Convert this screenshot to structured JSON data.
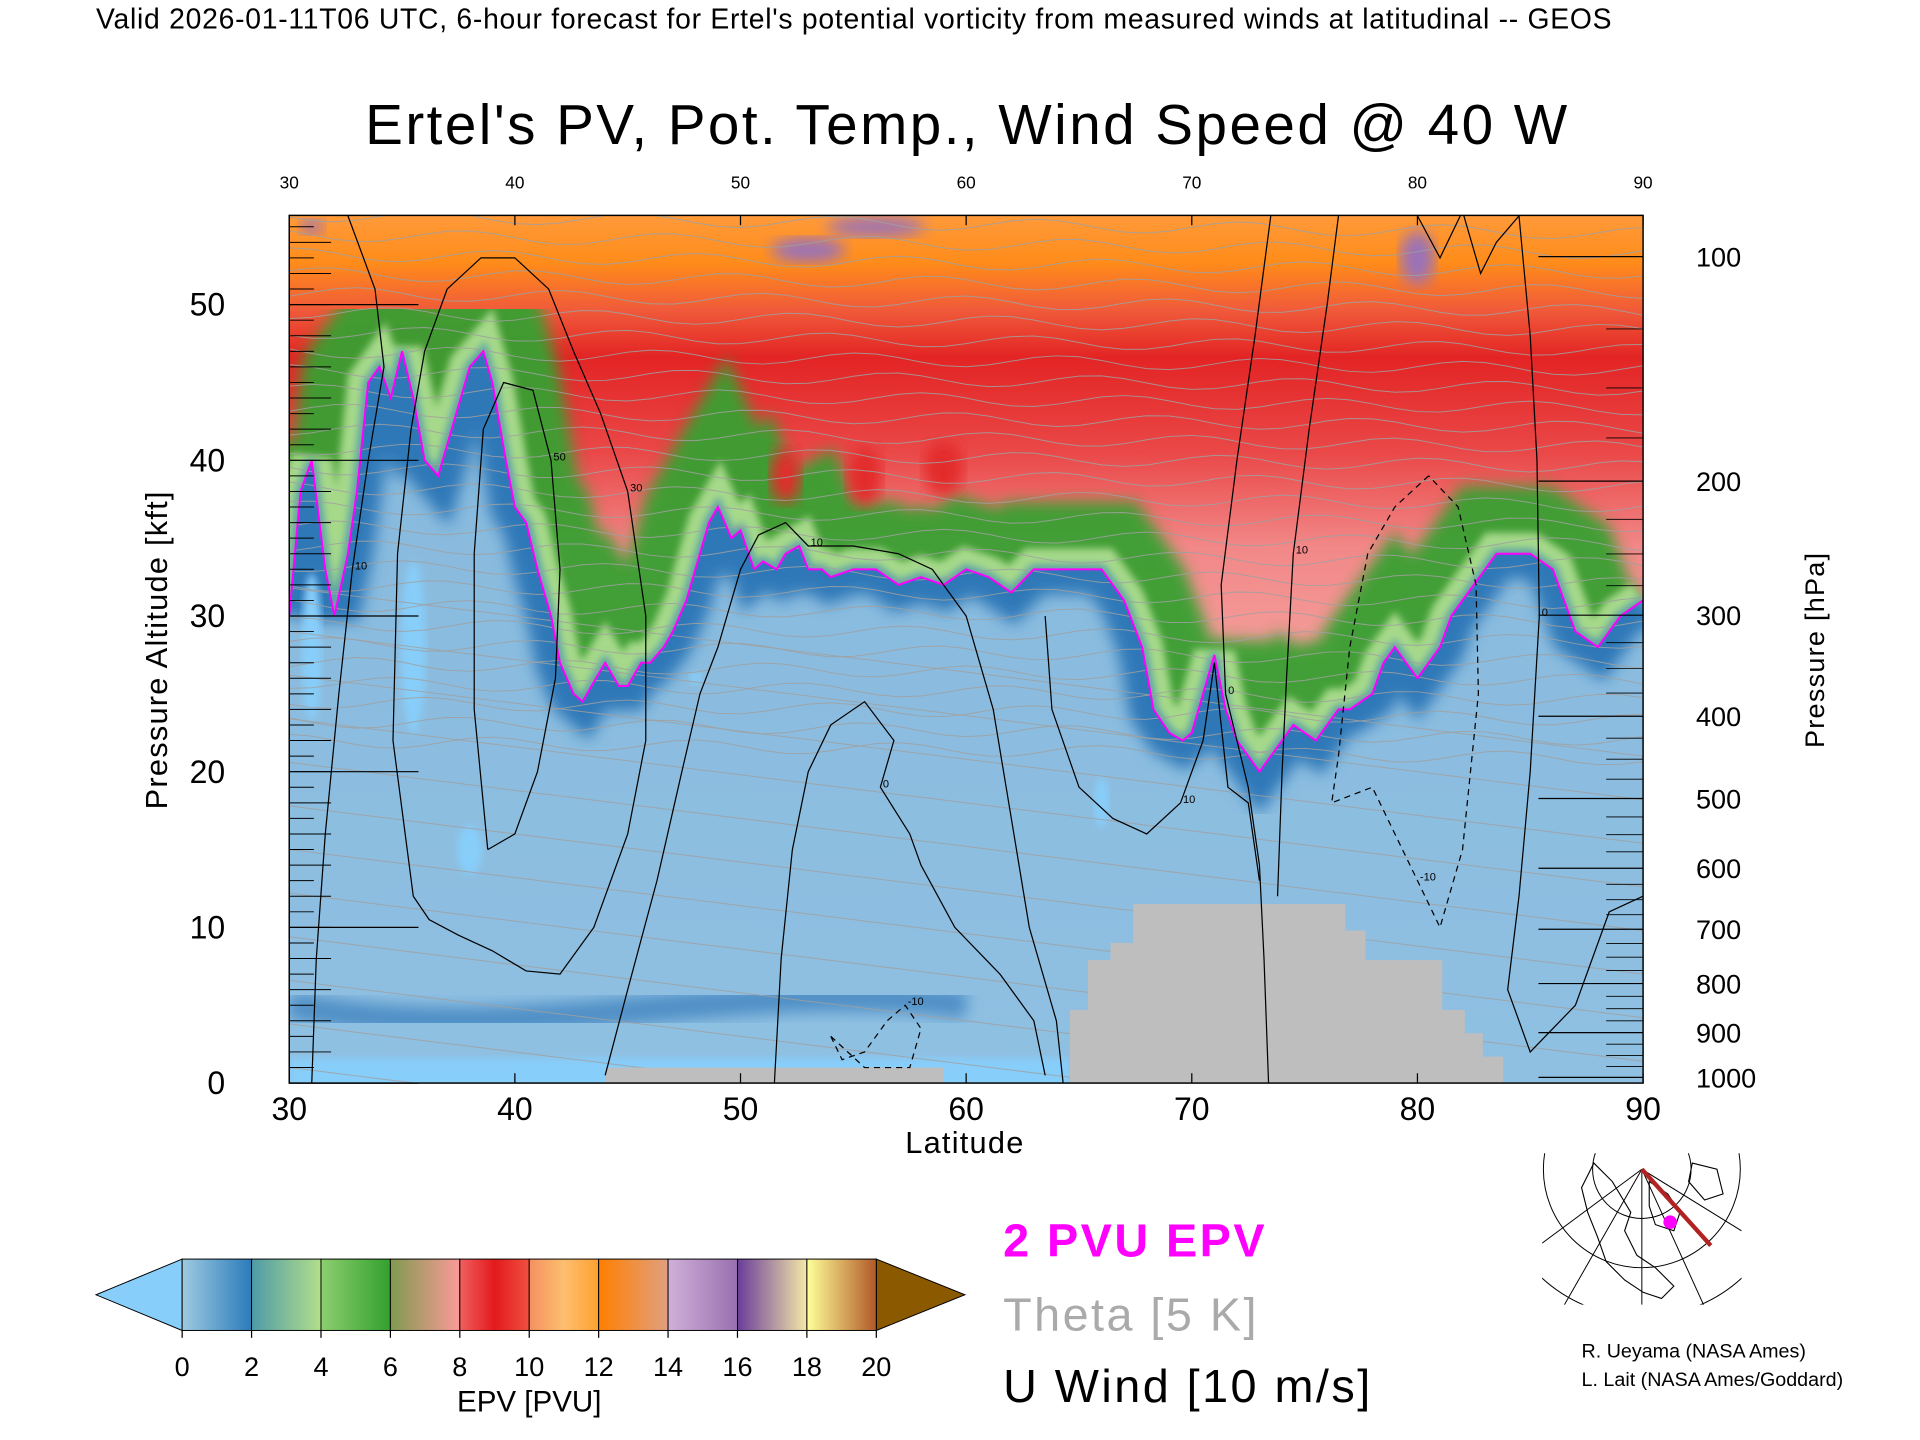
{
  "header": {
    "valid_line": "Valid 2026-01-11T06 UTC, 6-hour forecast for Ertel's potential vorticity from measured winds at latitudinal -- GEOS"
  },
  "chart_data": {
    "type": "heatmap",
    "title": "Ertel's PV, Pot. Temp., Wind Speed @ 40 W",
    "xlabel": "Latitude",
    "ylabel": "Pressure Altitude [kft]",
    "y2label": "Pressure [hPa]",
    "xlim": [
      30,
      90
    ],
    "ylim": [
      0,
      55.7
    ],
    "x_ticks": [
      "30",
      "40",
      "50",
      "60",
      "70",
      "80",
      "90"
    ],
    "top_x_ticks": [
      "30",
      "40",
      "50",
      "60",
      "70",
      "80",
      "90"
    ],
    "y_ticks": [
      "0",
      "10",
      "20",
      "30",
      "40",
      "50"
    ],
    "y2_ticks": [
      "100",
      "200",
      "300",
      "400",
      "500",
      "600",
      "700",
      "800",
      "900",
      "1000"
    ],
    "colorbar": {
      "label": "EPV [PVU]",
      "range": [
        0,
        20
      ],
      "tick_labels": [
        "0",
        "2",
        "4",
        "6",
        "8",
        "10",
        "12",
        "14",
        "16",
        "18",
        "20"
      ],
      "under_color": "#87cefa",
      "over_color": "#8b5a00",
      "segments": [
        [
          "#9ecae1",
          "#2b7bba"
        ],
        [
          "#4f9aa8",
          "#b2df8a"
        ],
        [
          "#8ccf70",
          "#33a02c"
        ],
        [
          "#809a50",
          "#fb9a99"
        ],
        [
          "#f06060",
          "#e31a1c",
          "#f05040"
        ],
        [
          "#f49060",
          "#fdbf6f",
          "#ffa030"
        ],
        [
          "#ff7f00",
          "#e0a080"
        ],
        [
          "#d0b0d8",
          "#9970b0"
        ],
        [
          "#6a3d9a",
          "#f4e8a8"
        ],
        [
          "#ffff99",
          "#b15928"
        ]
      ]
    },
    "legend": {
      "pv_contour": "2 PVU EPV",
      "theta": "Theta [5 K]",
      "wind": "U Wind [10 m/s]",
      "pv_color": "#ff00ff",
      "theta_color": "#aaaaaa",
      "wind_color": "#000000"
    },
    "tropopause_2pvu": [
      [
        30,
        30
      ],
      [
        30.5,
        38
      ],
      [
        31,
        40
      ],
      [
        31.6,
        33
      ],
      [
        32,
        30
      ],
      [
        32.6,
        34
      ],
      [
        33,
        38
      ],
      [
        33.5,
        45
      ],
      [
        34,
        46
      ],
      [
        34.5,
        44
      ],
      [
        35,
        47
      ],
      [
        35.5,
        44
      ],
      [
        36,
        40
      ],
      [
        36.6,
        39
      ],
      [
        37.2,
        42
      ],
      [
        38,
        46
      ],
      [
        38.6,
        47
      ],
      [
        39,
        45
      ],
      [
        39.6,
        40
      ],
      [
        40,
        37
      ],
      [
        40.5,
        36
      ],
      [
        41,
        33
      ],
      [
        41.6,
        30
      ],
      [
        42,
        27
      ],
      [
        42.6,
        25
      ],
      [
        43,
        24.5
      ],
      [
        43.6,
        26
      ],
      [
        44,
        27
      ],
      [
        44.6,
        25.5
      ],
      [
        45,
        25.5
      ],
      [
        45.6,
        27
      ],
      [
        46,
        27
      ],
      [
        46.6,
        28
      ],
      [
        47,
        29
      ],
      [
        47.6,
        31
      ],
      [
        48,
        33
      ],
      [
        48.6,
        36
      ],
      [
        49,
        37
      ],
      [
        49.6,
        35
      ],
      [
        50,
        35.5
      ],
      [
        50.6,
        33
      ],
      [
        51,
        33.5
      ],
      [
        51.6,
        33
      ],
      [
        52,
        34
      ],
      [
        52.6,
        34.5
      ],
      [
        53,
        33
      ],
      [
        53.6,
        33
      ],
      [
        54,
        32.5
      ],
      [
        55,
        33
      ],
      [
        56,
        33
      ],
      [
        57,
        32
      ],
      [
        58,
        32.5
      ],
      [
        59,
        32
      ],
      [
        60,
        33
      ],
      [
        61,
        32.5
      ],
      [
        62,
        31.5
      ],
      [
        63,
        33
      ],
      [
        64,
        33
      ],
      [
        65,
        33
      ],
      [
        66,
        33
      ],
      [
        67,
        31
      ],
      [
        67.8,
        28
      ],
      [
        68.3,
        24
      ],
      [
        69,
        22.5
      ],
      [
        69.6,
        22
      ],
      [
        70,
        22.5
      ],
      [
        70.5,
        25
      ],
      [
        71,
        27.5
      ],
      [
        71.5,
        24
      ],
      [
        72,
        22
      ],
      [
        72.5,
        21
      ],
      [
        73,
        20
      ],
      [
        73.5,
        21
      ],
      [
        74,
        22
      ],
      [
        74.5,
        23
      ],
      [
        75,
        22.5
      ],
      [
        75.5,
        22
      ],
      [
        76,
        23
      ],
      [
        76.5,
        24
      ],
      [
        77,
        24
      ],
      [
        77.5,
        24.5
      ],
      [
        78,
        25
      ],
      [
        78.5,
        27
      ],
      [
        79,
        28
      ],
      [
        79.5,
        27
      ],
      [
        80,
        26
      ],
      [
        80.5,
        27
      ],
      [
        81,
        28
      ],
      [
        81.5,
        30
      ],
      [
        82,
        31
      ],
      [
        82.5,
        32
      ],
      [
        83,
        33
      ],
      [
        83.5,
        34
      ],
      [
        84,
        34
      ],
      [
        84.5,
        34
      ],
      [
        85,
        34
      ],
      [
        85.5,
        33.5
      ],
      [
        86,
        33
      ],
      [
        86.5,
        31
      ],
      [
        87,
        29
      ],
      [
        87.5,
        28.5
      ],
      [
        88,
        28
      ],
      [
        88.5,
        29
      ],
      [
        89,
        30
      ],
      [
        89.5,
        30.5
      ],
      [
        90,
        31
      ]
    ],
    "terrain_mask": [
      [
        44,
        0
      ],
      [
        44,
        1
      ],
      [
        59,
        1
      ],
      [
        59,
        0
      ],
      [
        64.6,
        0
      ],
      [
        64.6,
        4.7
      ],
      [
        65.4,
        4.7
      ],
      [
        65.4,
        7.9
      ],
      [
        66.4,
        7.9
      ],
      [
        66.4,
        9
      ],
      [
        67.4,
        9
      ],
      [
        67.4,
        11.5
      ],
      [
        76.8,
        11.5
      ],
      [
        76.8,
        9.8
      ],
      [
        77.7,
        9.8
      ],
      [
        77.7,
        7.9
      ],
      [
        81.1,
        7.9
      ],
      [
        81.1,
        4.7
      ],
      [
        82.1,
        4.7
      ],
      [
        82.1,
        3.2
      ],
      [
        82.9,
        3.2
      ],
      [
        82.9,
        1.7
      ],
      [
        83.8,
        1.7
      ],
      [
        83.8,
        0
      ]
    ],
    "wind_contours": [
      {
        "label": "30",
        "dashed": false,
        "points": [
          [
            35.5,
            12
          ],
          [
            34.6,
            22
          ],
          [
            34.8,
            34
          ],
          [
            35.4,
            42
          ],
          [
            36,
            47
          ],
          [
            37,
            51
          ],
          [
            38.5,
            53
          ],
          [
            40,
            53
          ],
          [
            41.5,
            51
          ],
          [
            42.6,
            47
          ],
          [
            43.8,
            43
          ],
          [
            45,
            38
          ],
          [
            45.8,
            30
          ],
          [
            45.8,
            22
          ],
          [
            45,
            16
          ],
          [
            43.5,
            10
          ],
          [
            42,
            7
          ],
          [
            40.5,
            7.2
          ],
          [
            39,
            8.5
          ],
          [
            37.5,
            9.5
          ],
          [
            36.2,
            10.5
          ],
          [
            35.5,
            12
          ]
        ]
      },
      {
        "label": "50",
        "dashed": false,
        "points": [
          [
            38.8,
            15
          ],
          [
            38.2,
            24
          ],
          [
            38.2,
            34
          ],
          [
            38.6,
            42
          ],
          [
            39.5,
            45
          ],
          [
            40.8,
            44.5
          ],
          [
            41.6,
            40
          ],
          [
            42,
            33
          ],
          [
            41.8,
            26
          ],
          [
            41,
            20
          ],
          [
            40,
            16
          ],
          [
            38.8,
            15
          ]
        ]
      },
      {
        "label": "10",
        "dashed": false,
        "points": [
          [
            31,
            0
          ],
          [
            31.2,
            8
          ],
          [
            31.6,
            16
          ],
          [
            32.2,
            25
          ],
          [
            32.8,
            33
          ],
          [
            33.5,
            40
          ],
          [
            34.2,
            46
          ],
          [
            33.8,
            51
          ],
          [
            32.6,
            55.7
          ]
        ]
      },
      {
        "label": "10",
        "dashed": false,
        "points": [
          [
            44,
            0.5
          ],
          [
            45,
            6
          ],
          [
            46.3,
            13
          ],
          [
            47.4,
            20
          ],
          [
            48.2,
            25
          ],
          [
            49,
            28
          ],
          [
            50,
            33
          ],
          [
            50.8,
            35.2
          ],
          [
            52,
            36
          ],
          [
            53,
            34.5
          ],
          [
            55,
            34.5
          ],
          [
            57,
            34
          ],
          [
            58.5,
            33
          ],
          [
            60,
            30
          ],
          [
            61.2,
            24
          ],
          [
            62,
            17
          ],
          [
            62.8,
            10
          ],
          [
            64,
            4
          ],
          [
            64.3,
            0
          ]
        ]
      },
      {
        "label": "0",
        "dashed": false,
        "points": [
          [
            51.5,
            0
          ],
          [
            51.8,
            8
          ],
          [
            52.3,
            15
          ],
          [
            53,
            20
          ],
          [
            54,
            23
          ],
          [
            55.5,
            24.5
          ],
          [
            56.8,
            22
          ],
          [
            56.2,
            19
          ],
          [
            57.5,
            16
          ],
          [
            58,
            14
          ],
          [
            59.5,
            10
          ],
          [
            61.5,
            7
          ],
          [
            63,
            4
          ],
          [
            63.5,
            0.5
          ]
        ]
      },
      {
        "label": "10",
        "dashed": false,
        "points": [
          [
            63.5,
            30
          ],
          [
            63.8,
            24
          ],
          [
            65,
            19
          ],
          [
            66.5,
            17
          ],
          [
            68,
            16
          ],
          [
            69.5,
            18
          ],
          [
            70.5,
            22
          ],
          [
            71,
            27
          ],
          [
            71.6,
            19
          ],
          [
            72.5,
            18
          ],
          [
            73,
            13
          ]
        ]
      },
      {
        "label": "0",
        "dashed": false,
        "points": [
          [
            73.5,
            55.7
          ],
          [
            72.8,
            48
          ],
          [
            72,
            40
          ],
          [
            71.3,
            32
          ],
          [
            71.5,
            25
          ],
          [
            72.5,
            19
          ],
          [
            73,
            14
          ],
          [
            73.2,
            8
          ],
          [
            73.4,
            0
          ]
        ]
      },
      {
        "label": "10",
        "dashed": false,
        "points": [
          [
            76.5,
            55.7
          ],
          [
            76,
            50
          ],
          [
            75.2,
            42
          ],
          [
            74.5,
            34
          ],
          [
            74.2,
            26
          ],
          [
            74,
            20
          ],
          [
            73.8,
            12
          ]
        ]
      },
      {
        "label": "0",
        "dashed": false,
        "points": [
          [
            80,
            55.7
          ],
          [
            81,
            53
          ],
          [
            82,
            56
          ],
          [
            82.8,
            52
          ],
          [
            83.5,
            54
          ],
          [
            84.5,
            55.7
          ],
          [
            85,
            48
          ],
          [
            85.3,
            40
          ],
          [
            85.4,
            30
          ],
          [
            85,
            20
          ],
          [
            84.5,
            12
          ],
          [
            84,
            6
          ],
          [
            85,
            2
          ],
          [
            87,
            5
          ],
          [
            88.5,
            11
          ],
          [
            90,
            12
          ]
        ]
      },
      {
        "label": "-10",
        "dashed": true,
        "points": [
          [
            80.5,
            39
          ],
          [
            79,
            37
          ],
          [
            77.8,
            34
          ],
          [
            77,
            28
          ],
          [
            76.5,
            21
          ],
          [
            76.2,
            18
          ],
          [
            78,
            19
          ],
          [
            80,
            13
          ],
          [
            81,
            10
          ],
          [
            82,
            15
          ],
          [
            82.7,
            25
          ],
          [
            82.6,
            32
          ],
          [
            81.8,
            37
          ],
          [
            80.5,
            39
          ]
        ]
      },
      {
        "label": "-10",
        "dashed": true,
        "points": [
          [
            54,
            3
          ],
          [
            54.5,
            1.5
          ],
          [
            55.5,
            2
          ],
          [
            56.5,
            4
          ],
          [
            57.3,
            5
          ],
          [
            58,
            3.5
          ],
          [
            57.5,
            1
          ],
          [
            55.5,
            1
          ],
          [
            54,
            3
          ]
        ]
      }
    ]
  },
  "credits": {
    "line1": "R. Ueyama (NASA Ames)",
    "line2": "L. Lait (NASA Ames/Goddard)"
  }
}
